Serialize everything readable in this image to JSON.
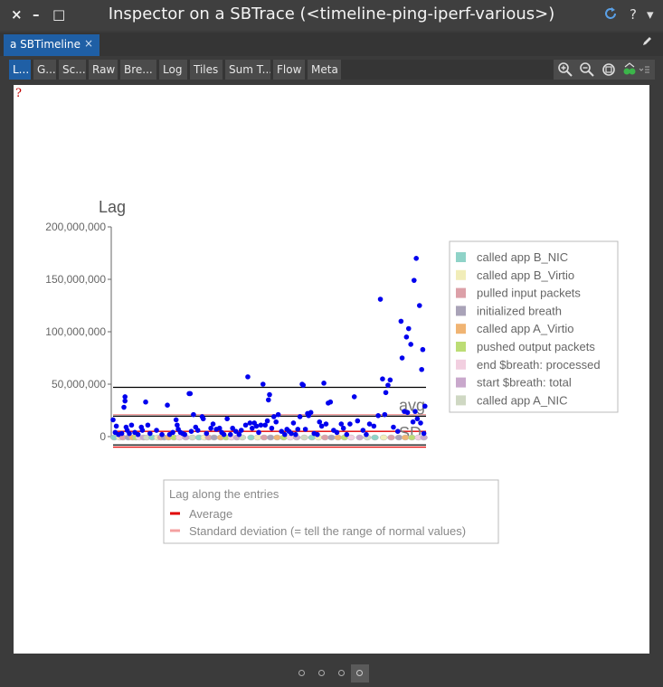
{
  "window": {
    "title": "Inspector on a SBTrace (<timeline-ping-iperf-various>)",
    "close_glyph": "×",
    "minimize_glyph": "–",
    "maximize_glyph": "□",
    "help_glyph": "?",
    "menu_glyph": "▾"
  },
  "tab": {
    "label": "a SBTimeline",
    "close_glyph": "×"
  },
  "presentations": [
    "L...",
    "G...",
    "Sc...",
    "Raw",
    "Bre...",
    "Log",
    "Tiles",
    "Sum T...",
    "Flow",
    "Meta"
  ],
  "pane": {
    "error_mark": "?"
  },
  "pager": {
    "pages": 4,
    "selected": 4
  },
  "colors": {
    "accent": "#1f5fa5",
    "dots": "#0000ee",
    "average": "#e00000",
    "stddev": "#f4a0a0"
  },
  "chart_data": {
    "type": "scatter",
    "title": "Lag",
    "ylim": [
      0,
      200000000
    ],
    "yticks": [
      {
        "value": 0,
        "label": "0"
      },
      {
        "value": 50000000,
        "label": "50,000,000"
      },
      {
        "value": 100000000,
        "label": "100,000,000"
      },
      {
        "value": 150000000,
        "label": "150,000,000"
      },
      {
        "value": 200000000,
        "label": "200,000,000"
      }
    ],
    "reference_lines": [
      {
        "value": 47000000,
        "color": "#000000"
      },
      {
        "value": 21000000,
        "color": "#f4a0a0"
      },
      {
        "value": 19500000,
        "color": "#000000"
      },
      {
        "value": 5000000,
        "color": "#e00000"
      },
      {
        "value": -8000000,
        "color": "#000000"
      },
      {
        "value": -10000000,
        "color": "#e00000"
      }
    ],
    "line_labels": [
      {
        "text": "avg",
        "value": 27000000
      },
      {
        "text": "SD",
        "value": 1000000
      }
    ],
    "categories": [
      {
        "name": "called app B_NIC",
        "color": "#8fd3c8"
      },
      {
        "name": "called app B_Virtio",
        "color": "#f1edb9"
      },
      {
        "name": "pulled input packets",
        "color": "#dca0a8"
      },
      {
        "name": "initialized breath",
        "color": "#a9a3b8"
      },
      {
        "name": "called app A_Virtio",
        "color": "#f0b473"
      },
      {
        "name": "pushed output packets",
        "color": "#bcdd75"
      },
      {
        "name": "end $breath: processed",
        "color": "#f2cfe0"
      },
      {
        "name": "start $breath: total",
        "color": "#c9a8cc"
      },
      {
        "name": "called app A_NIC",
        "color": "#cfd8c3"
      }
    ],
    "legend_position": "right",
    "series": [
      {
        "name": "Lag",
        "points": [
          [
            0,
            16000000
          ],
          [
            2,
            4000000
          ],
          [
            3,
            10000000
          ],
          [
            5,
            2000000
          ],
          [
            8,
            3000000
          ],
          [
            10,
            28000000
          ],
          [
            11,
            34000000
          ],
          [
            11,
            38000000
          ],
          [
            12,
            9000000
          ],
          [
            13,
            6000000
          ],
          [
            15,
            3000000
          ],
          [
            17,
            11000000
          ],
          [
            20,
            4000000
          ],
          [
            23,
            2000000
          ],
          [
            26,
            9000000
          ],
          [
            27,
            6000000
          ],
          [
            30,
            33000000
          ],
          [
            32,
            11000000
          ],
          [
            34,
            3000000
          ],
          [
            40,
            6000000
          ],
          [
            45,
            2000000
          ],
          [
            50,
            30000000
          ],
          [
            52,
            2000000
          ],
          [
            55,
            4000000
          ],
          [
            58,
            16000000
          ],
          [
            59,
            11000000
          ],
          [
            60,
            7000000
          ],
          [
            62,
            4000000
          ],
          [
            64,
            3000000
          ],
          [
            66,
            2000000
          ],
          [
            70,
            41000000
          ],
          [
            71,
            41000000
          ],
          [
            72,
            5000000
          ],
          [
            74,
            21000000
          ],
          [
            76,
            9000000
          ],
          [
            78,
            6000000
          ],
          [
            82,
            19000000
          ],
          [
            83,
            17000000
          ],
          [
            86,
            3000000
          ],
          [
            90,
            8000000
          ],
          [
            92,
            12000000
          ],
          [
            95,
            7000000
          ],
          [
            98,
            8000000
          ],
          [
            100,
            4000000
          ],
          [
            102,
            2000000
          ],
          [
            105,
            17000000
          ],
          [
            108,
            2000000
          ],
          [
            110,
            8000000
          ],
          [
            113,
            5000000
          ],
          [
            116,
            2000000
          ],
          [
            118,
            6000000
          ],
          [
            122,
            11000000
          ],
          [
            124,
            57000000
          ],
          [
            126,
            13000000
          ],
          [
            128,
            8000000
          ],
          [
            130,
            13000000
          ],
          [
            132,
            10000000
          ],
          [
            134,
            4000000
          ],
          [
            136,
            11000000
          ],
          [
            138,
            50000000
          ],
          [
            140,
            11000000
          ],
          [
            142,
            15000000
          ],
          [
            143,
            35000000
          ],
          [
            144,
            40000000
          ],
          [
            146,
            8000000
          ],
          [
            148,
            19000000
          ],
          [
            150,
            14000000
          ],
          [
            152,
            21000000
          ],
          [
            155,
            5000000
          ],
          [
            158,
            2000000
          ],
          [
            160,
            7000000
          ],
          [
            162,
            5000000
          ],
          [
            164,
            3000000
          ],
          [
            166,
            13000000
          ],
          [
            168,
            2000000
          ],
          [
            170,
            7000000
          ],
          [
            172,
            19000000
          ],
          [
            174,
            50000000
          ],
          [
            175,
            49000000
          ],
          [
            177,
            7000000
          ],
          [
            179,
            22000000
          ],
          [
            180,
            20000000
          ],
          [
            182,
            23000000
          ],
          [
            185,
            3000000
          ],
          [
            188,
            2000000
          ],
          [
            190,
            14000000
          ],
          [
            192,
            10000000
          ],
          [
            194,
            51000000
          ],
          [
            196,
            12000000
          ],
          [
            198,
            32000000
          ],
          [
            200,
            33000000
          ],
          [
            203,
            6000000
          ],
          [
            206,
            4000000
          ],
          [
            210,
            12000000
          ],
          [
            212,
            8000000
          ],
          [
            215,
            2000000
          ],
          [
            218,
            12000000
          ],
          [
            222,
            38000000
          ],
          [
            225,
            15000000
          ],
          [
            230,
            6000000
          ],
          [
            233,
            2000000
          ],
          [
            236,
            12000000
          ],
          [
            240,
            10000000
          ],
          [
            244,
            20000000
          ],
          [
            246,
            131000000
          ],
          [
            248,
            55000000
          ],
          [
            250,
            21000000
          ],
          [
            251,
            42000000
          ],
          [
            253,
            49000000
          ],
          [
            255,
            54000000
          ],
          [
            258,
            9000000
          ],
          [
            262,
            5000000
          ],
          [
            265,
            110000000
          ],
          [
            266,
            75000000
          ],
          [
            268,
            24000000
          ],
          [
            270,
            95000000
          ],
          [
            271,
            23000000
          ],
          [
            272,
            103000000
          ],
          [
            274,
            88000000
          ],
          [
            276,
            14000000
          ],
          [
            277,
            149000000
          ],
          [
            278,
            24000000
          ],
          [
            279,
            170000000
          ],
          [
            280,
            17000000
          ],
          [
            282,
            125000000
          ],
          [
            283,
            13000000
          ],
          [
            284,
            64000000
          ],
          [
            285,
            83000000
          ],
          [
            286,
            3000000
          ],
          [
            287,
            29000000
          ]
        ]
      },
      {
        "name": "entries",
        "points": [
          [
            1,
            1
          ],
          [
            6,
            1
          ],
          [
            9,
            1
          ],
          [
            14,
            1
          ],
          [
            18,
            1
          ],
          [
            21,
            1
          ],
          [
            24,
            1
          ],
          [
            28,
            1
          ],
          [
            31,
            1
          ],
          [
            36,
            1
          ],
          [
            41,
            1
          ],
          [
            44,
            1
          ],
          [
            47,
            1
          ],
          [
            51,
            1
          ],
          [
            56,
            1
          ],
          [
            61,
            1
          ],
          [
            67,
            1
          ],
          [
            73,
            1
          ],
          [
            79,
            1
          ],
          [
            84,
            1
          ],
          [
            88,
            1
          ],
          [
            93,
            1
          ],
          [
            99,
            1
          ],
          [
            104,
            1
          ],
          [
            109,
            1
          ],
          [
            114,
            1
          ],
          [
            119,
            1
          ],
          [
            127,
            1
          ],
          [
            133,
            1
          ],
          [
            139,
            1
          ],
          [
            145,
            1
          ],
          [
            151,
            1
          ],
          [
            157,
            1
          ],
          [
            163,
            1
          ],
          [
            169,
            1
          ],
          [
            176,
            1
          ],
          [
            183,
            1
          ],
          [
            189,
            1
          ],
          [
            195,
            1
          ],
          [
            201,
            1
          ],
          [
            207,
            1
          ],
          [
            213,
            1
          ],
          [
            219,
            1
          ],
          [
            227,
            1
          ],
          [
            234,
            1
          ],
          [
            241,
            1
          ],
          [
            249,
            1
          ],
          [
            256,
            1
          ],
          [
            263,
            1
          ],
          [
            269,
            1
          ],
          [
            275,
            1
          ],
          [
            281,
            1
          ],
          [
            286,
            1
          ]
        ]
      }
    ],
    "bottom_legend": {
      "title": "Lag along the entries",
      "items": [
        {
          "label": "Average",
          "color": "#e00000"
        },
        {
          "label": "Standard deviation (= tell the range of normal values)",
          "color": "#f4a0a0"
        }
      ]
    }
  }
}
